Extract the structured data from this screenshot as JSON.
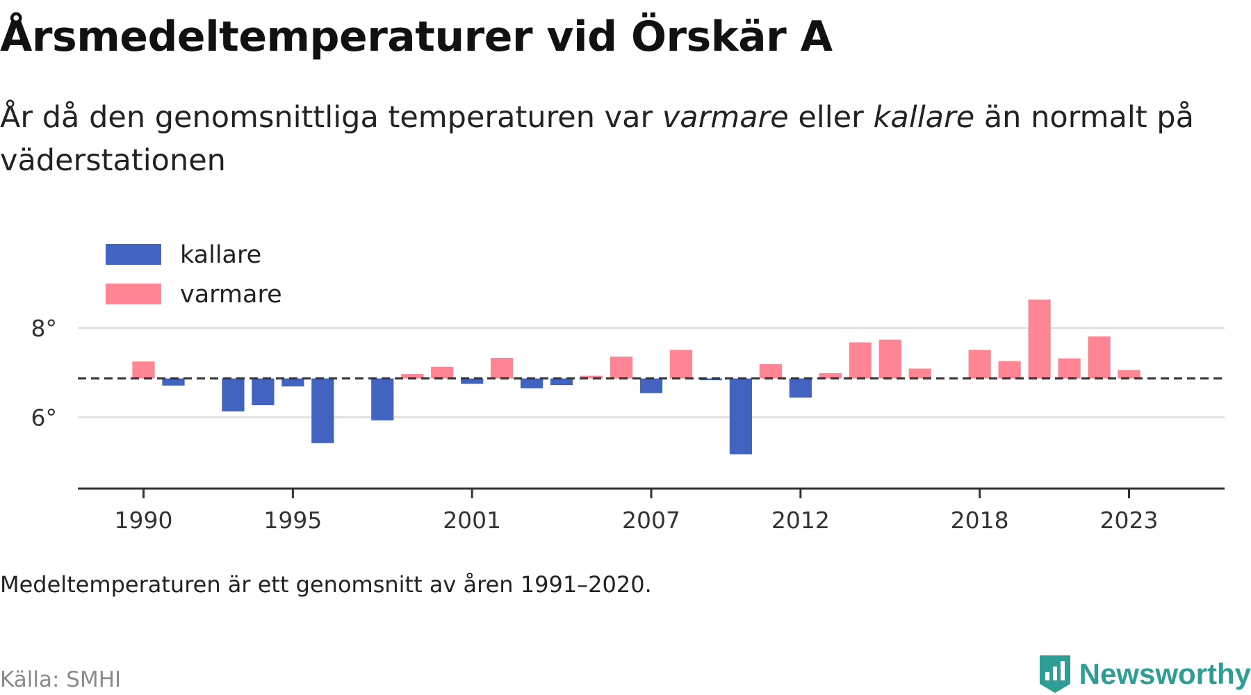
{
  "header": {
    "title": "Årsmedeltemperaturer vid Örskär A",
    "subtitle_parts": [
      "År då den genomsnittliga temperaturen var ",
      "varmare",
      " eller ",
      "kallare",
      " än normalt på väderstationen"
    ]
  },
  "footer": {
    "note": "Medeltemperaturen är ett genomsnitt av åren 1991–2020.",
    "source": "Källa: SMHI",
    "brand": "Newsworthy"
  },
  "colors": {
    "colder": "#4263c0",
    "warmer": "#ff8594",
    "grid": "#dddddd",
    "axis": "#333333",
    "baseline": "#333333",
    "brand": "#2e9e94"
  },
  "icons": {
    "brand_logo": "bar-chart-shield-icon"
  },
  "chart_data": {
    "type": "bar",
    "title": "Årsmedeltemperaturer vid Örskär A",
    "baseline_value": 6.87,
    "ylim": [
      4.4,
      9.2
    ],
    "yticks": [
      6,
      8
    ],
    "ytick_labels": [
      "6°",
      "8°"
    ],
    "xlim": [
      1987.8,
      2026.2
    ],
    "xticks": [
      1990,
      1995,
      2001,
      2007,
      2012,
      2018,
      2023
    ],
    "xtick_labels": [
      "1990",
      "1995",
      "2001",
      "2007",
      "2012",
      "2018",
      "2023"
    ],
    "grid": "horizontal",
    "legend": {
      "placement": "top-left",
      "entries": [
        {
          "key": "colder",
          "label": "kallare"
        },
        {
          "key": "warmer",
          "label": "varmare"
        }
      ]
    },
    "series": [
      {
        "x": [
          1990,
          1991,
          1993,
          1994,
          1995,
          1996,
          1998,
          1999,
          2000,
          2001,
          2002,
          2003,
          2004,
          2005,
          2006,
          2007,
          2008,
          2009,
          2010,
          2011,
          2012,
          2013,
          2014,
          2015,
          2016,
          2018,
          2019,
          2020,
          2021,
          2022,
          2023
        ],
        "values": [
          7.25,
          6.71,
          6.13,
          6.27,
          6.69,
          5.42,
          5.93,
          6.97,
          7.13,
          6.75,
          7.33,
          6.65,
          6.72,
          6.93,
          7.36,
          6.54,
          7.51,
          6.83,
          5.17,
          7.19,
          6.44,
          6.99,
          7.68,
          7.74,
          7.09,
          7.51,
          7.26,
          8.64,
          7.32,
          7.81,
          7.06
        ]
      }
    ]
  }
}
